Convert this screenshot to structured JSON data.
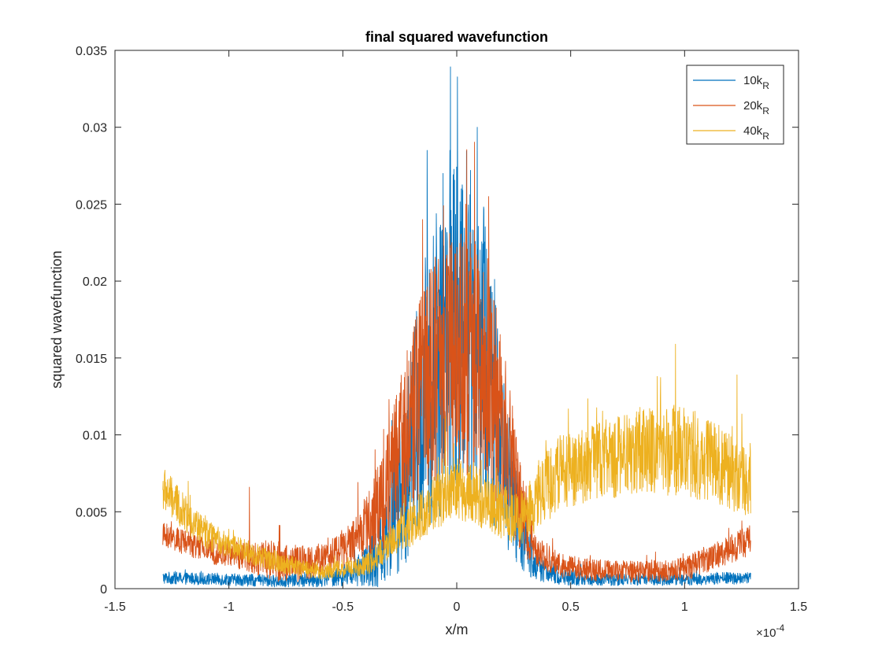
{
  "chart_data": {
    "type": "line",
    "title": "final squared wavefunction",
    "xlabel": "x/m",
    "ylabel": "squared wavefunction",
    "x_exponent_label": "×10",
    "x_exponent_power": "-4",
    "xlim": [
      -1.5,
      1.5
    ],
    "ylim": [
      0,
      0.035
    ],
    "xticks": [
      -1.5,
      -1,
      -0.5,
      0,
      0.5,
      1,
      1.5
    ],
    "xtick_labels": [
      "-1.5",
      "-1",
      "-0.5",
      "0",
      "0.5",
      "1",
      "1.5"
    ],
    "yticks": [
      0,
      0.005,
      0.01,
      0.015,
      0.02,
      0.025,
      0.03,
      0.035
    ],
    "ytick_labels": [
      "0",
      "0.005",
      "0.01",
      "0.015",
      "0.02",
      "0.025",
      "0.03",
      "0.035"
    ],
    "grid": false,
    "legend_position": "top-right",
    "x_range_data": [
      -1.29,
      1.29
    ],
    "series": [
      {
        "name": "10k",
        "name_subscript": "R",
        "color": "#0072BD",
        "envelope_x": [
          -1.29,
          -1.0,
          -0.8,
          -0.6,
          -0.45,
          -0.35,
          -0.25,
          -0.15,
          -0.05,
          0.0,
          0.05,
          0.1,
          0.15,
          0.2,
          0.25,
          0.3,
          0.35,
          0.45,
          0.6,
          0.8,
          1.0,
          1.29
        ],
        "envelope_y": [
          0.0007,
          0.0006,
          0.0005,
          0.0006,
          0.001,
          0.002,
          0.006,
          0.012,
          0.016,
          0.017,
          0.017,
          0.016,
          0.013,
          0.009,
          0.005,
          0.003,
          0.0015,
          0.0008,
          0.0006,
          0.0006,
          0.0006,
          0.0007
        ],
        "amplitude_y": [
          0.0004,
          0.0004,
          0.0004,
          0.0005,
          0.0008,
          0.002,
          0.005,
          0.009,
          0.011,
          0.011,
          0.011,
          0.011,
          0.009,
          0.006,
          0.004,
          0.002,
          0.001,
          0.0006,
          0.0004,
          0.0004,
          0.0004,
          0.0004
        ],
        "peak_points": [
          [
            -0.13,
            0.0285
          ],
          [
            -0.03,
            0.0285
          ],
          [
            0.02,
            0.026
          ],
          [
            0.09,
            0.03
          ],
          [
            -0.06,
            0.027
          ]
        ]
      },
      {
        "name": "20k",
        "name_subscript": "R",
        "color": "#D95319",
        "envelope_x": [
          -1.29,
          -1.1,
          -0.9,
          -0.8,
          -0.7,
          -0.6,
          -0.45,
          -0.35,
          -0.25,
          -0.15,
          -0.05,
          0.0,
          0.1,
          0.2,
          0.25,
          0.3,
          0.35,
          0.45,
          0.6,
          0.8,
          1.0,
          1.15,
          1.29
        ],
        "envelope_y": [
          0.0035,
          0.0025,
          0.002,
          0.0018,
          0.0016,
          0.0018,
          0.003,
          0.005,
          0.009,
          0.013,
          0.015,
          0.0155,
          0.015,
          0.011,
          0.007,
          0.004,
          0.0025,
          0.0015,
          0.0012,
          0.0011,
          0.0013,
          0.0022,
          0.0032
        ],
        "amplitude_y": [
          0.0008,
          0.0008,
          0.001,
          0.0015,
          0.0012,
          0.001,
          0.0015,
          0.003,
          0.005,
          0.007,
          0.008,
          0.008,
          0.008,
          0.006,
          0.004,
          0.002,
          0.001,
          0.0008,
          0.0007,
          0.0007,
          0.0008,
          0.0009,
          0.001
        ],
        "peak_points": [
          [
            -0.91,
            0.0066
          ],
          [
            0.14,
            0.0255
          ],
          [
            -0.15,
            0.024
          ],
          [
            0.04,
            0.025
          ]
        ]
      },
      {
        "name": "40k",
        "name_subscript": "R",
        "color": "#EDB120",
        "envelope_x": [
          -1.29,
          -1.2,
          -1.1,
          -1.0,
          -0.8,
          -0.6,
          -0.4,
          -0.25,
          -0.1,
          0.0,
          0.1,
          0.2,
          0.3,
          0.35,
          0.45,
          0.6,
          0.8,
          0.95,
          1.1,
          1.2,
          1.29
        ],
        "envelope_y": [
          0.0065,
          0.005,
          0.0035,
          0.0028,
          0.0018,
          0.0011,
          0.0015,
          0.0035,
          0.0055,
          0.0065,
          0.006,
          0.005,
          0.0045,
          0.006,
          0.0075,
          0.0083,
          0.0088,
          0.009,
          0.0085,
          0.0075,
          0.0068
        ],
        "amplitude_y": [
          0.0015,
          0.0012,
          0.001,
          0.0008,
          0.0007,
          0.0005,
          0.0007,
          0.0012,
          0.0018,
          0.002,
          0.002,
          0.0018,
          0.0018,
          0.0022,
          0.0025,
          0.0025,
          0.0028,
          0.003,
          0.0028,
          0.0025,
          0.0022
        ],
        "peak_points": [
          [
            0.96,
            0.0159
          ],
          [
            0.88,
            0.0138
          ],
          [
            1.23,
            0.0139
          ],
          [
            -0.05,
            0.0112
          ]
        ]
      }
    ]
  }
}
